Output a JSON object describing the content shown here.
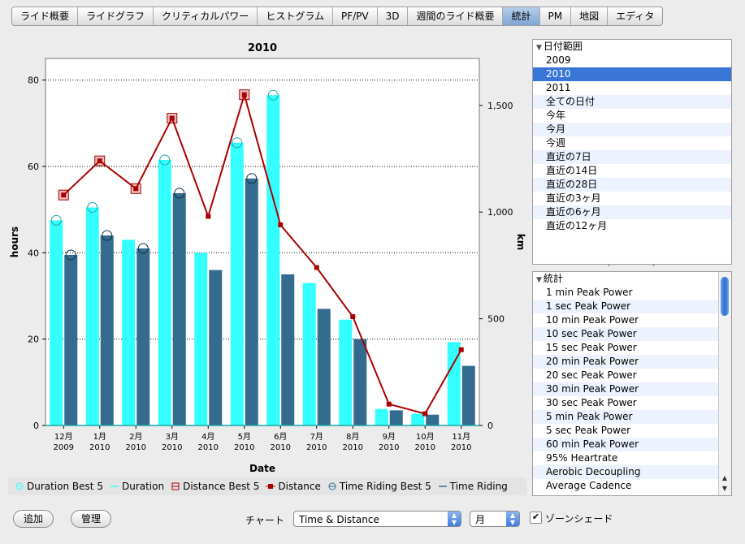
{
  "tabs": [
    "ライド概要",
    "ライドグラフ",
    "クリティカルパワー",
    "ヒストグラム",
    "PF/PV",
    "3D",
    "週間のライド概要",
    "統計",
    "PM",
    "地図",
    "エディタ"
  ],
  "active_tab": "統計",
  "chart_data": {
    "type": "bar",
    "title": "2010",
    "xlabel": "Date",
    "ylabel": "hours",
    "y2label": "km",
    "ylim": [
      0,
      85
    ],
    "y2lim": [
      0,
      1720
    ],
    "yticks": [
      "0",
      "20",
      "40",
      "60",
      "80"
    ],
    "y2ticks": [
      "0",
      "500",
      "1,000",
      "1,500"
    ],
    "categories": [
      [
        "12月",
        "2009"
      ],
      [
        "1月",
        "2010"
      ],
      [
        "2月",
        "2010"
      ],
      [
        "3月",
        "2010"
      ],
      [
        "4月",
        "2010"
      ],
      [
        "5月",
        "2010"
      ],
      [
        "6月",
        "2010"
      ],
      [
        "7月",
        "2010"
      ],
      [
        "8月",
        "2010"
      ],
      [
        "9月",
        "2010"
      ],
      [
        "10月",
        "2010"
      ],
      [
        "11月",
        "2010"
      ]
    ],
    "series": [
      {
        "name": "Duration",
        "kind": "bar",
        "axis": "left",
        "color": "#33ffff",
        "values": [
          47.5,
          50.5,
          43,
          61.5,
          40,
          65.5,
          76.5,
          33,
          24.5,
          3.8,
          2.7,
          19.3
        ]
      },
      {
        "name": "Duration Best 5",
        "kind": "marker",
        "axis": "left",
        "color": "#33ffff",
        "values": [
          47.5,
          50.5,
          null,
          61.5,
          null,
          65.5,
          76.5,
          null,
          null,
          null,
          null,
          null
        ]
      },
      {
        "name": "Time Riding",
        "kind": "bar",
        "axis": "left",
        "color": "#336c8e",
        "values": [
          39.5,
          44,
          41,
          53.8,
          36,
          57.2,
          35,
          27,
          20,
          3.5,
          2.5,
          13.8
        ]
      },
      {
        "name": "Time Riding Best 5",
        "kind": "marker",
        "axis": "left",
        "color": "#336c8e",
        "values": [
          39.5,
          44,
          41,
          53.8,
          null,
          57.2,
          null,
          null,
          null,
          null,
          null,
          null
        ]
      },
      {
        "name": "Distance",
        "kind": "line",
        "axis": "right",
        "color": "#aa0000",
        "values": [
          1080,
          1240,
          1110,
          1440,
          980,
          1550,
          940,
          740,
          510,
          100,
          55,
          355
        ]
      },
      {
        "name": "Distance Best 5",
        "kind": "marker",
        "axis": "right",
        "color": "#aa0000",
        "values": [
          1080,
          1240,
          1110,
          1440,
          null,
          1550,
          null,
          null,
          null,
          null,
          null,
          null
        ]
      }
    ],
    "legend_position": "bottom",
    "grid": true
  },
  "legend": [
    {
      "name": "Duration Best 5",
      "icon": "circle",
      "color": "#33ffff"
    },
    {
      "name": "Duration",
      "icon": "line",
      "color": "#33ffff"
    },
    {
      "name": "Distance Best 5",
      "icon": "square-open",
      "color": "#aa0000"
    },
    {
      "name": "Distance",
      "icon": "square-filled",
      "color": "#aa0000"
    },
    {
      "name": "Time Riding Best 5",
      "icon": "circle",
      "color": "#336c8e"
    },
    {
      "name": "Time Riding",
      "icon": "line",
      "color": "#336c8e"
    }
  ],
  "date_panel": {
    "header": "日付範囲",
    "items": [
      "2009",
      "2010",
      "2011",
      "全ての日付",
      "今年",
      "今月",
      "今週",
      "直近の7日",
      "直近の14日",
      "直近の28日",
      "直近の3ヶ月",
      "直近の6ヶ月",
      "直近の12ヶ月"
    ],
    "selected": "2010"
  },
  "stats_panel": {
    "header": "統計",
    "items": [
      "1 min Peak Power",
      "1 sec Peak Power",
      "10 min Peak Power",
      "10 sec Peak Power",
      "15 sec Peak Power",
      "20 min Peak Power",
      "20 sec Peak Power",
      "30 min Peak Power",
      "30 sec Peak Power",
      "5 min Peak Power",
      "5 sec Peak Power",
      "60 min Peak Power",
      "95% Heartrate",
      "Aerobic Decoupling",
      "Average Cadence"
    ]
  },
  "bottom": {
    "add_label": "追加",
    "manage_label": "管理",
    "chart_label": "チャート",
    "chart_select": "Time & Distance",
    "period_select": "月",
    "zone_label": "ゾーンシェード",
    "zone_checked": true
  },
  "colors": {
    "accent": "#3875d7",
    "duration": "#33ffff",
    "time_riding": "#336c8e",
    "distance": "#aa0000"
  }
}
